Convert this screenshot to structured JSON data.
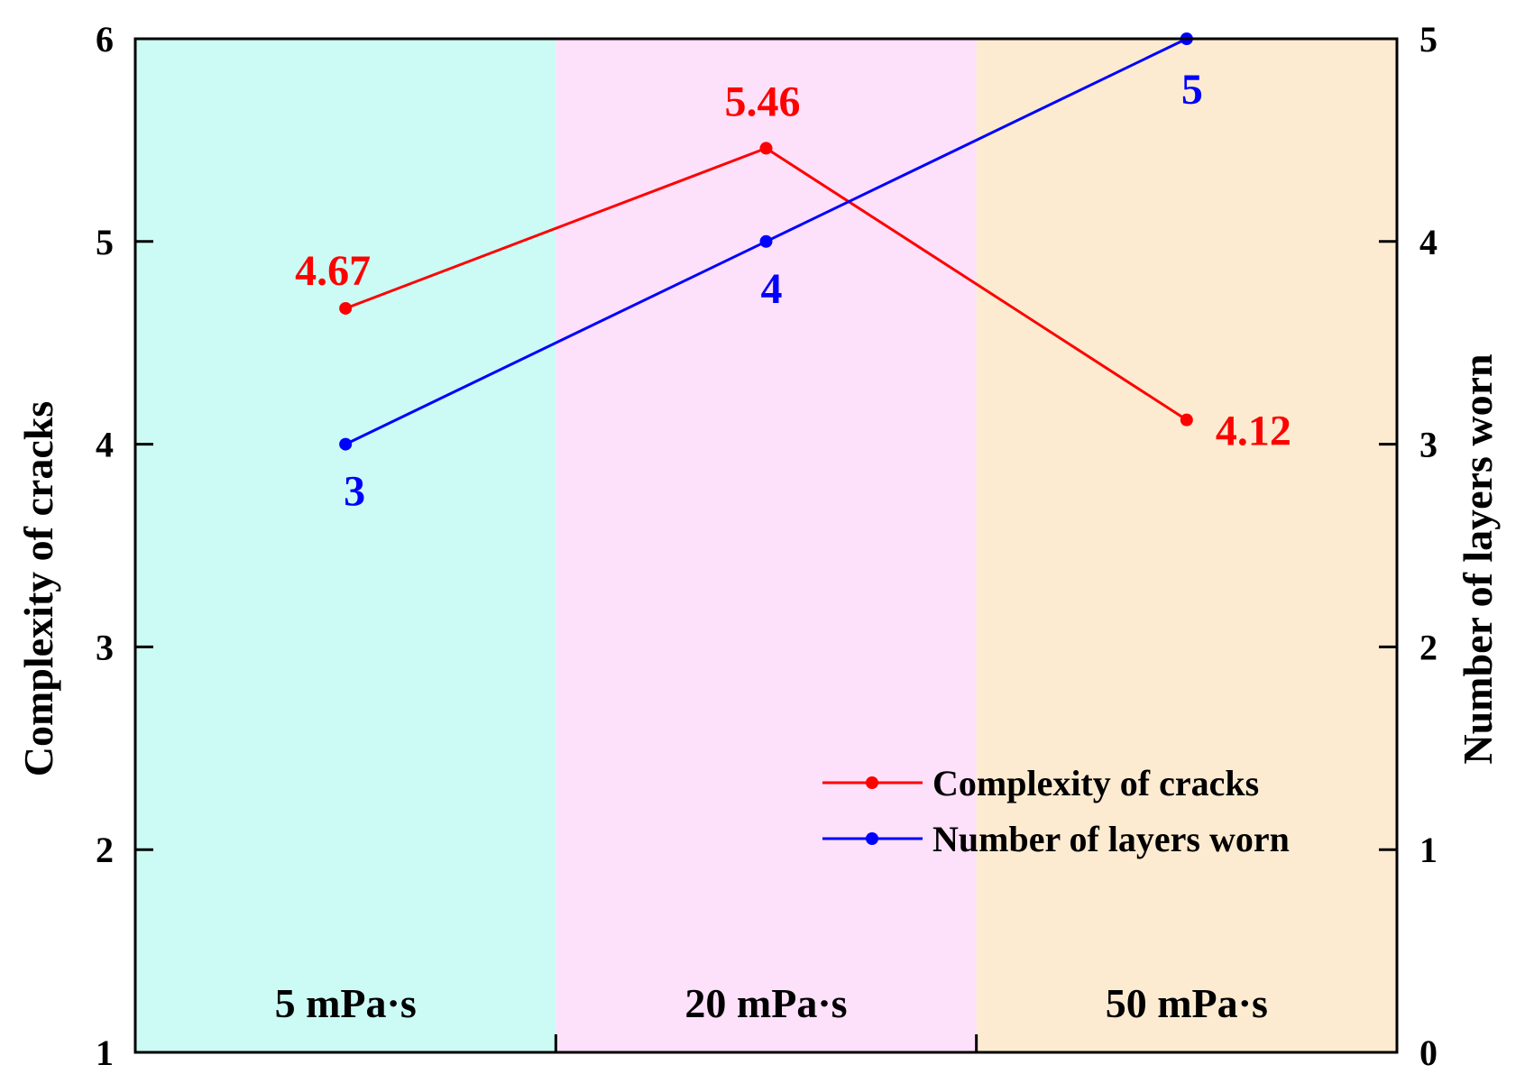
{
  "chart_data": {
    "type": "line",
    "categories": [
      "5 mPa·s",
      "20 mPa·s",
      "50 mPa·s"
    ],
    "category_bands": [
      {
        "label": "5 mPa·s",
        "color": "#ccfbf5"
      },
      {
        "label": "20 mPa·s",
        "color": "#fde0fa"
      },
      {
        "label": "50 mPa·s",
        "color": "#fcebd1"
      }
    ],
    "y_left": {
      "label": "Complexity of cracks",
      "ylim": [
        1,
        6
      ],
      "ticks": [
        1,
        2,
        3,
        4,
        5,
        6
      ]
    },
    "y_right": {
      "label": "Number of layers worn",
      "ylim": [
        0,
        5
      ],
      "ticks": [
        0,
        1,
        2,
        3,
        4,
        5
      ]
    },
    "series": [
      {
        "name": "Complexity of cracks",
        "axis": "left",
        "color": "#ff0000",
        "values": [
          4.67,
          5.46,
          4.12
        ],
        "labels": [
          "4.67",
          "5.46",
          "4.12"
        ]
      },
      {
        "name": "Number of layers worn",
        "axis": "right",
        "color": "#0000ff",
        "values": [
          3,
          4,
          5
        ],
        "labels": [
          "3",
          "4",
          "5"
        ]
      }
    ],
    "legend": {
      "position": "bottom-right"
    },
    "grid": false
  }
}
